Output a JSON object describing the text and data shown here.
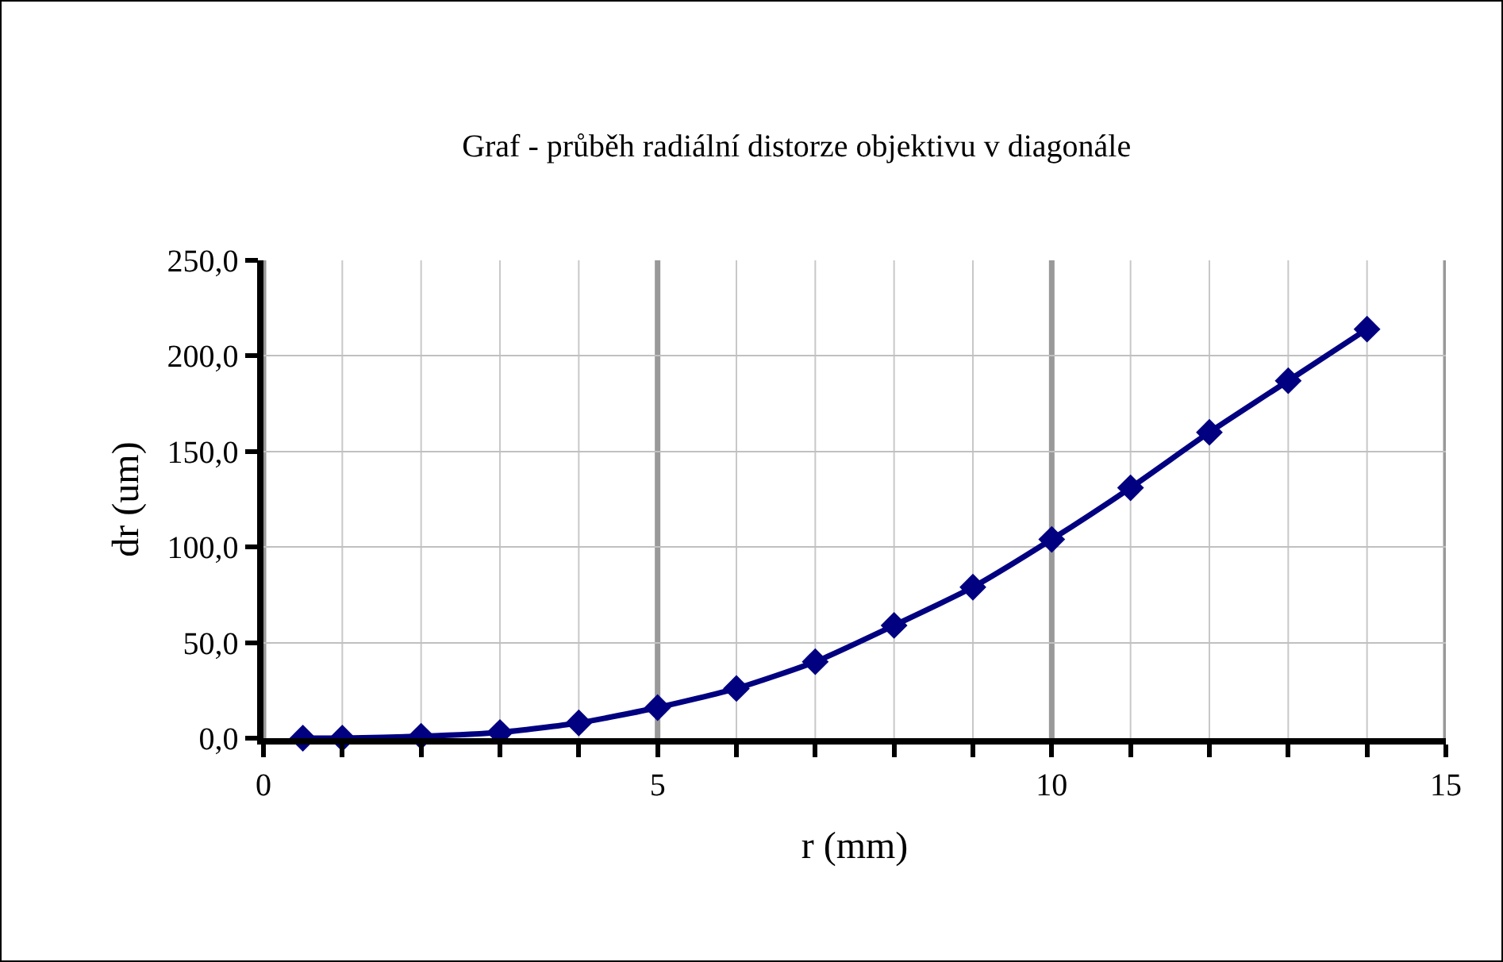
{
  "chart_data": {
    "type": "line",
    "title": "Graf - průběh radiální distorze objektivu v diagonále",
    "xlabel": "r (mm)",
    "ylabel": "dr (um)",
    "x": [
      0.5,
      1,
      2,
      3,
      4,
      5,
      6,
      7,
      8,
      9,
      10,
      11,
      12,
      13,
      14
    ],
    "series": [
      {
        "color": "#000080",
        "values": [
          0,
          0,
          1,
          3,
          8,
          16,
          26,
          40,
          59,
          79,
          104,
          131,
          160,
          187,
          214
        ]
      }
    ],
    "xlim": [
      0,
      15
    ],
    "xticks": [
      0,
      {
        "value": 1,
        "label": null
      },
      {
        "value": 2,
        "label": null
      },
      {
        "value": 3,
        "label": null
      },
      {
        "value": 4,
        "label": null
      },
      5,
      {
        "value": 6,
        "label": null
      },
      {
        "value": 7,
        "label": null
      },
      {
        "value": 8,
        "label": null
      },
      {
        "value": 9,
        "label": null
      },
      10,
      {
        "value": 11,
        "label": null
      },
      {
        "value": 12,
        "label": null
      },
      {
        "value": 13,
        "label": null
      },
      {
        "value": 14,
        "label": null
      },
      15
    ],
    "ylim": [
      0,
      250
    ],
    "yticks": [
      {
        "value": 0,
        "label": "0,0"
      },
      {
        "value": 50,
        "label": "50,0"
      },
      {
        "value": 100,
        "label": "100,0"
      },
      {
        "value": 150,
        "label": "150,0"
      },
      {
        "value": 200,
        "label": "200,0"
      },
      {
        "value": 250,
        "label": "250,0"
      }
    ],
    "grid": true,
    "marker": "diamond",
    "line_style": "solid"
  }
}
